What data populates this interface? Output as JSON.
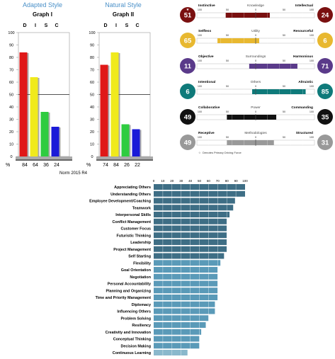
{
  "colors": {
    "D": "#e01818",
    "I": "#f0ea1c",
    "S": "#2ecc40",
    "C": "#1a1ad8",
    "knowledge": "#7a1010",
    "utility": "#e8b830",
    "surroundings": "#5a3a8a",
    "others": "#0f7a7a",
    "power": "#111111",
    "methodologies": "#999999",
    "bar_dark": "#3e6e85",
    "bar_light": "#5a9ab8",
    "bar_lightest": "#8ab8cc",
    "style_title": "#4a90c8"
  },
  "graph1": {
    "style_title": "Adapted Style",
    "title": "Graph I",
    "letters": [
      "D",
      "I",
      "S",
      "C"
    ],
    "percent_label": "%",
    "values_text": [
      "84",
      "64",
      "36",
      "24"
    ]
  },
  "graph2": {
    "style_title": "Natural Style",
    "title": "Graph II",
    "letters": [
      "D",
      "I",
      "S",
      "C"
    ],
    "percent_label": "%",
    "values_text": [
      "74",
      "84",
      "26",
      "22"
    ]
  },
  "motivators": {
    "scale_ticks": [
      "100",
      "50",
      "0",
      "50",
      "100"
    ],
    "legend": "Denotes Primary Driving Force",
    "rows": [
      {
        "left": "Instinctive",
        "center": "Knowledge",
        "right": "Intellectual",
        "left_score": "51",
        "right_score": "24",
        "color_key": "knowledge",
        "left_star": true
      },
      {
        "left": "Selfless",
        "center": "Utility",
        "right": "Resourceful",
        "left_score": "65",
        "right_score": "6",
        "color_key": "utility"
      },
      {
        "left": "Objective",
        "center": "Surroundings",
        "right": "Harmonious",
        "left_score": "11",
        "right_score": "71",
        "color_key": "surroundings"
      },
      {
        "left": "Intentional",
        "center": "Others",
        "right": "Altruistic",
        "left_score": "6",
        "right_score": "85",
        "color_key": "others"
      },
      {
        "left": "Collaborative",
        "center": "Power",
        "right": "Commanding",
        "left_score": "49",
        "right_score": "35",
        "color_key": "power"
      },
      {
        "left": "Receptive",
        "center": "Methodologies",
        "right": "Structured",
        "left_score": "49",
        "right_score": "31",
        "color_key": "methodologies"
      }
    ]
  },
  "norm": "Norm 2015 R4",
  "chart_data": [
    {
      "type": "bar",
      "title": "Graph I",
      "subtitle": "Adapted Style",
      "categories": [
        "D",
        "I",
        "S",
        "C"
      ],
      "values": [
        84,
        64,
        36,
        24
      ],
      "ylim": [
        0,
        100
      ],
      "yticks": [
        "0",
        "10",
        "20",
        "30",
        "40",
        "50",
        "60",
        "70",
        "80",
        "90",
        "100"
      ],
      "reference_line": 50
    },
    {
      "type": "bar",
      "title": "Graph II",
      "subtitle": "Natural Style",
      "categories": [
        "D",
        "I",
        "S",
        "C"
      ],
      "values": [
        74,
        84,
        26,
        22
      ],
      "ylim": [
        0,
        100
      ],
      "yticks": [
        "0",
        "10",
        "20",
        "30",
        "40",
        "50",
        "60",
        "70",
        "80",
        "90",
        "100"
      ],
      "reference_line": 50
    },
    {
      "type": "bar",
      "orientation": "horizontal",
      "xlim": [
        0,
        100
      ],
      "xticks": [
        "0",
        "10",
        "20",
        "30",
        "40",
        "50",
        "60",
        "70",
        "80",
        "90",
        "100"
      ],
      "categories": [
        "Appreciating Others",
        "Understanding Others",
        "Employee Development/Coaching",
        "Teamwork",
        "Interpersonal Skills",
        "Conflict Management",
        "Customer Focus",
        "Futuristic Thinking",
        "Leadership",
        "Project Management",
        "Self Starting",
        "Flexibility",
        "Goal Orientation",
        "Negotiation",
        "Personal Accountability",
        "Planning and Organizing",
        "Time and Priority Management",
        "Diplomacy",
        "Influencing Others",
        "Problem Solving",
        "Resiliency",
        "Creativity and Innovation",
        "Conceptual Thinking",
        "Decision Making",
        "Continuous Learning"
      ],
      "values": [
        100,
        100,
        89,
        87,
        83,
        80,
        80,
        80,
        80,
        80,
        77,
        73,
        70,
        70,
        70,
        70,
        70,
        67,
        67,
        60,
        57,
        52,
        50,
        50,
        37
      ],
      "shade": [
        "dark",
        "dark",
        "dark",
        "dark",
        "dark",
        "dark",
        "dark",
        "dark",
        "dark",
        "dark",
        "dark",
        "light",
        "light",
        "light",
        "light",
        "light",
        "light",
        "light",
        "light",
        "light",
        "light",
        "light",
        "light",
        "light",
        "lightest"
      ]
    }
  ]
}
